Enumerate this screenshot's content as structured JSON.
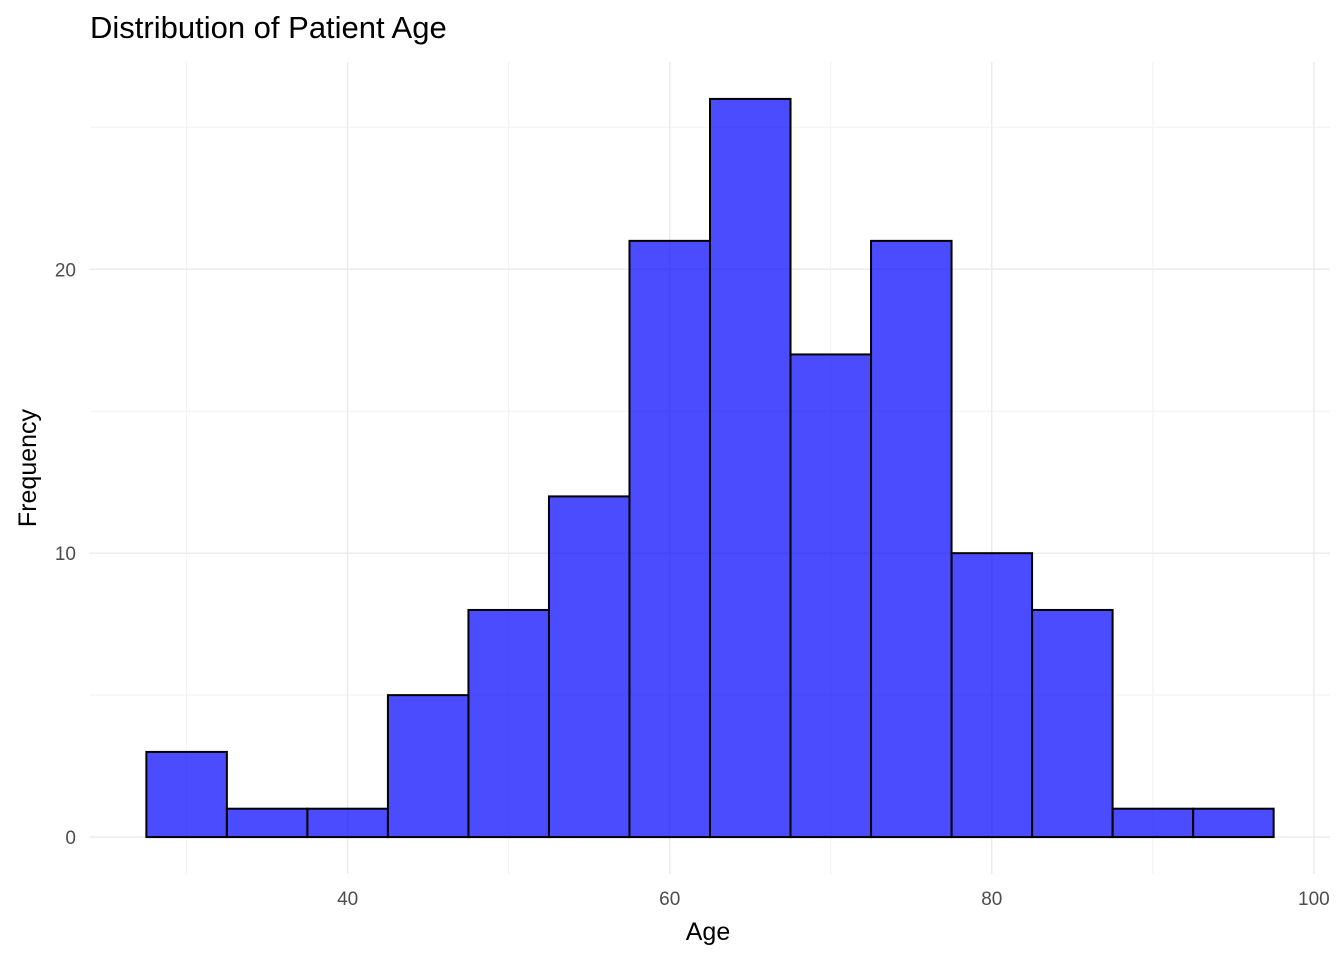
{
  "chart_data": {
    "type": "bar",
    "subtype": "histogram",
    "title": "Distribution of Patient Age",
    "xlabel": "Age",
    "ylabel": "Frequency",
    "bin_width": 5,
    "bins": [
      {
        "start": 27.5,
        "end": 32.5,
        "count": 3
      },
      {
        "start": 32.5,
        "end": 37.5,
        "count": 1
      },
      {
        "start": 37.5,
        "end": 42.5,
        "count": 1
      },
      {
        "start": 42.5,
        "end": 47.5,
        "count": 5
      },
      {
        "start": 47.5,
        "end": 52.5,
        "count": 8
      },
      {
        "start": 52.5,
        "end": 57.5,
        "count": 12
      },
      {
        "start": 57.5,
        "end": 62.5,
        "count": 21
      },
      {
        "start": 62.5,
        "end": 67.5,
        "count": 26
      },
      {
        "start": 67.5,
        "end": 72.5,
        "count": 17
      },
      {
        "start": 72.5,
        "end": 77.5,
        "count": 21
      },
      {
        "start": 77.5,
        "end": 82.5,
        "count": 10
      },
      {
        "start": 82.5,
        "end": 87.5,
        "count": 8
      },
      {
        "start": 87.5,
        "end": 92.5,
        "count": 1
      },
      {
        "start": 92.5,
        "end": 97.5,
        "count": 1
      }
    ],
    "xlim": [
      24,
      101
    ],
    "ylim": [
      -1.3,
      27.3
    ],
    "x_ticks": [
      40,
      60,
      80,
      100
    ],
    "x_minor_ticks": [
      30,
      50,
      70,
      90
    ],
    "y_ticks": [
      0,
      10,
      20
    ],
    "y_minor_ticks": [
      5,
      15,
      25
    ],
    "bar_fill": "#0000ff",
    "bar_opacity": 0.7,
    "bar_outline": "#000000",
    "grid": true,
    "legend": "none"
  }
}
